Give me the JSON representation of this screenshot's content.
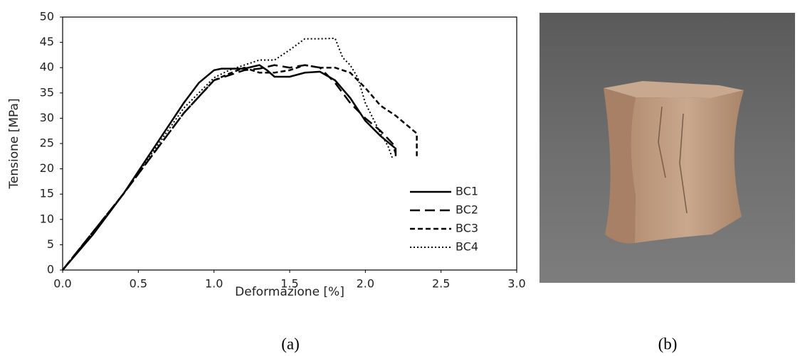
{
  "chart_data": {
    "type": "line",
    "xlabel": "Deformazione [%]",
    "ylabel": "Tensione [MPa]",
    "xlim": [
      0,
      3
    ],
    "ylim": [
      0,
      50
    ],
    "xticks": [
      {
        "value": 0,
        "label": "0.0"
      },
      {
        "value": 0.5,
        "label": "0.5"
      },
      {
        "value": 1,
        "label": "1.0"
      },
      {
        "value": 1.5,
        "label": "1.5"
      },
      {
        "value": 2,
        "label": "2.0"
      },
      {
        "value": 2.5,
        "label": "2.5"
      },
      {
        "value": 3,
        "label": "3.0"
      }
    ],
    "yticks": [
      0,
      5,
      10,
      15,
      20,
      25,
      30,
      35,
      40,
      45,
      50
    ],
    "grid": false,
    "legend": "lower right",
    "series": [
      {
        "name": "BC1",
        "color": "#000000",
        "dash": "solid",
        "x": [
          0,
          0.2,
          0.4,
          0.6,
          0.8,
          0.9,
          1.0,
          1.05,
          1.2,
          1.3,
          1.35,
          1.4,
          1.5,
          1.6,
          1.7,
          1.8,
          1.9,
          2.0,
          2.1,
          2.2,
          2.2
        ],
        "values": [
          0,
          7,
          15,
          24,
          33,
          37,
          39.5,
          39.8,
          39.8,
          40.5,
          39.5,
          38.2,
          38.2,
          39,
          39.2,
          37.5,
          34,
          29.5,
          26.5,
          24,
          22.5
        ]
      },
      {
        "name": "BC2",
        "color": "#000000",
        "dash": "long-dashed",
        "x": [
          0,
          0.2,
          0.4,
          0.6,
          0.8,
          1.0,
          1.1,
          1.2,
          1.3,
          1.4,
          1.5,
          1.6,
          1.7,
          1.8,
          1.9,
          2.0,
          2.1,
          2.18,
          2.2
        ],
        "values": [
          0,
          7.5,
          15,
          23,
          31,
          37.5,
          38.5,
          39.5,
          39.8,
          40.5,
          40,
          40.5,
          40,
          37,
          33,
          30,
          27.5,
          25,
          23
        ]
      },
      {
        "name": "BC3",
        "color": "#000000",
        "dash": "short-dashed",
        "x": [
          0,
          0.2,
          0.4,
          0.6,
          0.8,
          1.0,
          1.1,
          1.2,
          1.3,
          1.4,
          1.5,
          1.6,
          1.7,
          1.8,
          1.9,
          2.0,
          2.1,
          2.2,
          2.3,
          2.34,
          2.34
        ],
        "values": [
          0,
          7.5,
          15,
          23,
          31,
          37.5,
          38.8,
          40,
          39,
          39,
          39.5,
          40.5,
          40,
          40,
          39,
          36,
          32.5,
          30.5,
          28,
          27,
          22.5
        ]
      },
      {
        "name": "BC4",
        "color": "#000000",
        "dash": "dotted",
        "x": [
          0,
          0.2,
          0.4,
          0.6,
          0.8,
          1.0,
          1.1,
          1.2,
          1.3,
          1.4,
          1.5,
          1.6,
          1.7,
          1.8,
          1.85,
          1.9,
          1.95,
          2.0,
          2.1,
          2.15,
          2.18
        ],
        "values": [
          0,
          7.5,
          15,
          23.5,
          32,
          38,
          39.5,
          40.5,
          41.5,
          41.5,
          43.5,
          45.7,
          45.7,
          45.8,
          42,
          40.5,
          38,
          33,
          27,
          24.5,
          22
        ]
      }
    ]
  },
  "captions": [
    "(a)",
    "(b)"
  ]
}
